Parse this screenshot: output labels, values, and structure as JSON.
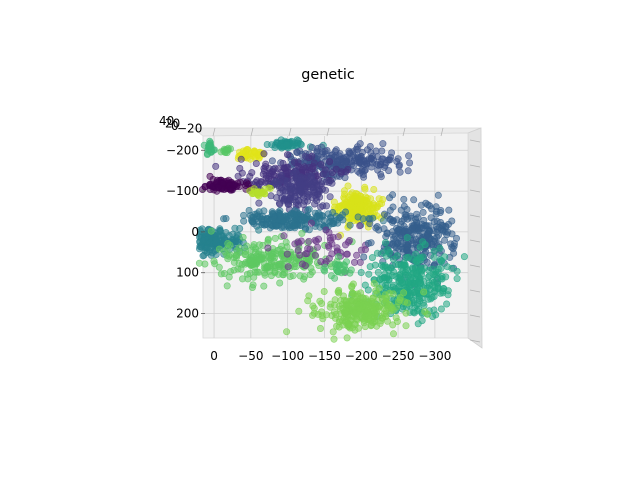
{
  "chart_data": {
    "type": "scatter",
    "projection": "3d",
    "title": "genetic",
    "xlabel": "",
    "ylabel": "",
    "zlabel": "",
    "x_ticks": [
      "0",
      "−50",
      "−100",
      "−150",
      "−200",
      "−250",
      "−300"
    ],
    "x_tick_values": [
      0,
      -50,
      -100,
      -150,
      -200,
      -250,
      -300
    ],
    "y_ticks": [
      "−200",
      "−100",
      "0",
      "100",
      "200"
    ],
    "y_tick_values": [
      -200,
      -100,
      0,
      100,
      200
    ],
    "z_ticks_overlapping": [
      "40",
      "20",
      "0",
      "−20"
    ],
    "xlim": [
      15,
      -345
    ],
    "ylim": [
      -235,
      260
    ],
    "grid": true,
    "colormap": "viridis",
    "point_alpha": 0.55,
    "clusters": [
      {
        "cx": 5,
        "cy": -205,
        "sx": 3,
        "sy": 10,
        "n": 25,
        "color": "#3cb878"
      },
      {
        "cx": -15,
        "cy": -200,
        "sx": 5,
        "sy": 4,
        "n": 12,
        "color": "#58c765"
      },
      {
        "cx": -48,
        "cy": -190,
        "sx": 10,
        "sy": 7,
        "n": 40,
        "color": "#e1e31a"
      },
      {
        "cx": -100,
        "cy": -215,
        "sx": 12,
        "sy": 6,
        "n": 55,
        "color": "#21918c"
      },
      {
        "cx": -170,
        "cy": -170,
        "sx": 38,
        "sy": 20,
        "n": 230,
        "color": "#3b528b"
      },
      {
        "cx": -100,
        "cy": -140,
        "sx": 35,
        "sy": 18,
        "n": 150,
        "color": "#46337f"
      },
      {
        "cx": -115,
        "cy": -100,
        "sx": 18,
        "sy": 22,
        "n": 140,
        "color": "#433e85"
      },
      {
        "cx": -15,
        "cy": -115,
        "sx": 15,
        "sy": 7,
        "n": 85,
        "color": "#440154"
      },
      {
        "cx": -62,
        "cy": -95,
        "sx": 7,
        "sy": 6,
        "n": 25,
        "color": "#b5de2b"
      },
      {
        "cx": -195,
        "cy": -60,
        "sx": 14,
        "sy": 20,
        "n": 180,
        "color": "#d8e219"
      },
      {
        "cx": -105,
        "cy": -30,
        "sx": 40,
        "sy": 12,
        "n": 200,
        "color": "#2c728e"
      },
      {
        "cx": 10,
        "cy": 25,
        "sx": 22,
        "sy": 14,
        "n": 230,
        "color": "#26828e"
      },
      {
        "cx": -75,
        "cy": 70,
        "sx": 38,
        "sy": 25,
        "n": 230,
        "color": "#5ec962"
      },
      {
        "cx": -150,
        "cy": 40,
        "sx": 30,
        "sy": 25,
        "n": 55,
        "color": "#6b3a8a"
      },
      {
        "cx": -275,
        "cy": 15,
        "sx": 25,
        "sy": 40,
        "n": 280,
        "color": "#355f8d"
      },
      {
        "cx": -265,
        "cy": 130,
        "sx": 28,
        "sy": 40,
        "n": 300,
        "color": "#22a884"
      },
      {
        "cx": -200,
        "cy": 190,
        "sx": 28,
        "sy": 25,
        "n": 260,
        "color": "#7ad151"
      },
      {
        "cx": -170,
        "cy": 90,
        "sx": 12,
        "sy": 12,
        "n": 25,
        "color": "#4ac16d"
      }
    ]
  }
}
